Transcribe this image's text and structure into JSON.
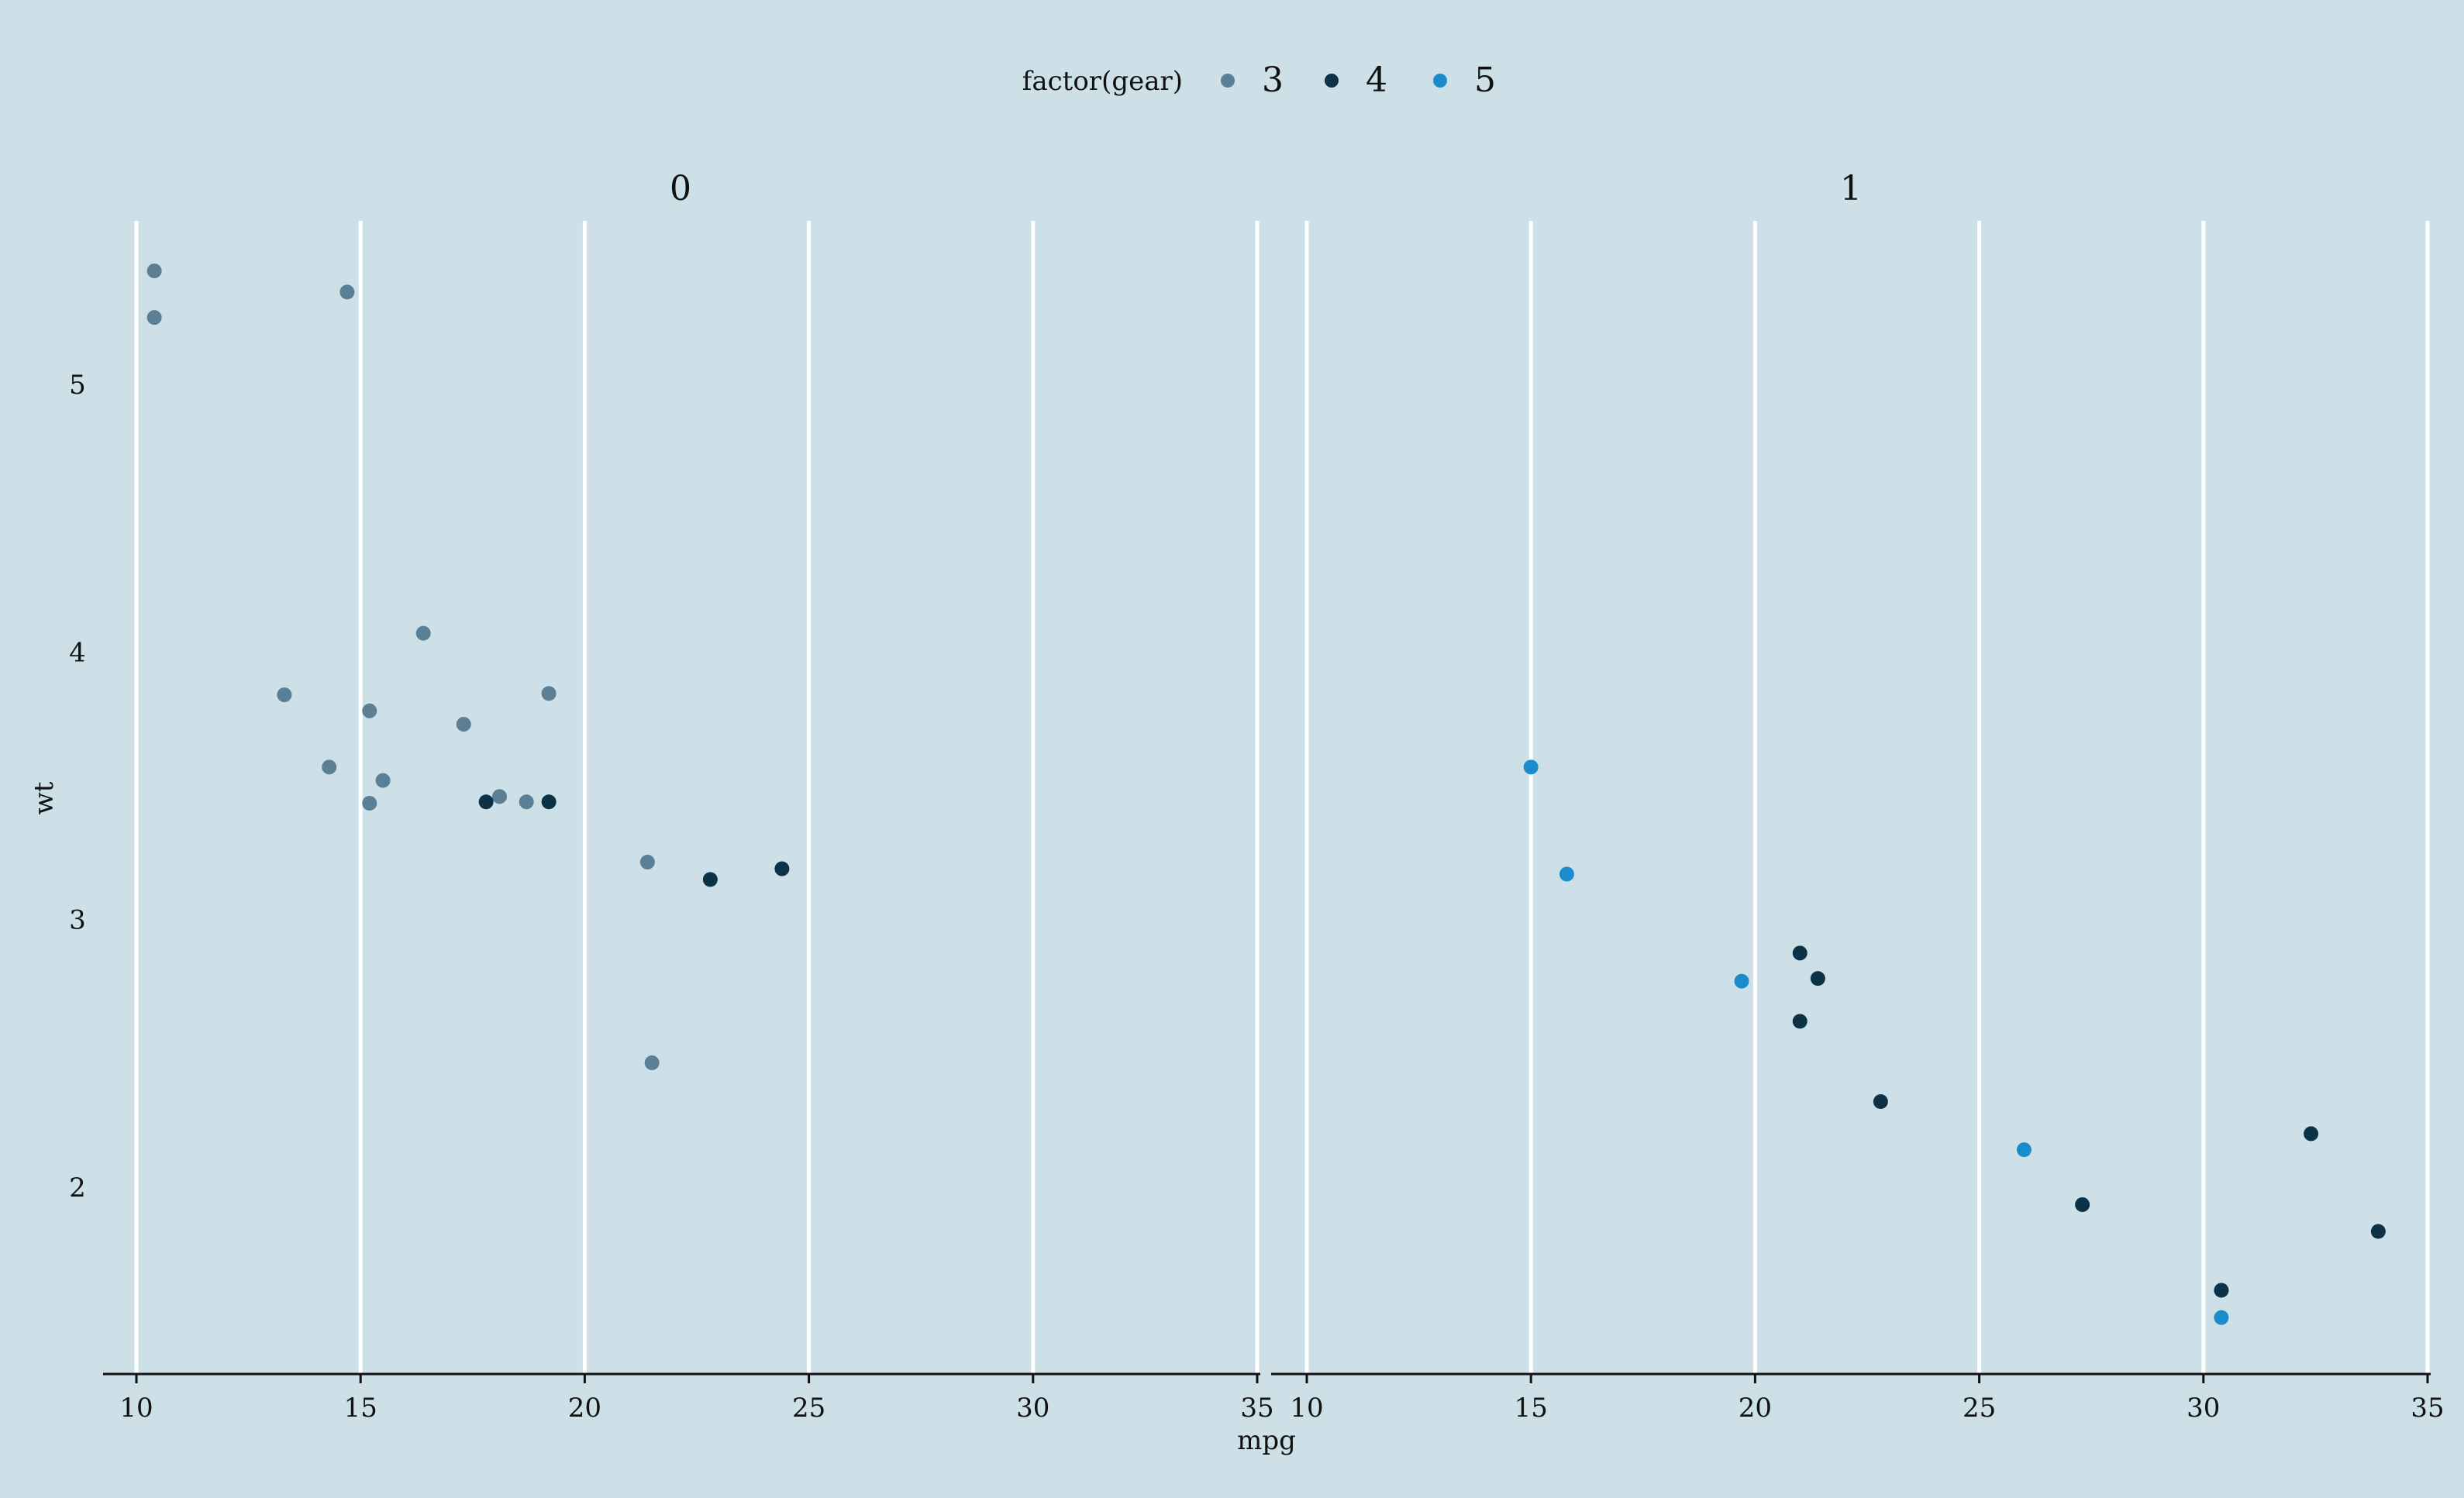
{
  "legend": {
    "title": "factor(gear)",
    "items": [
      {
        "label": "3",
        "color": "#5b7f95"
      },
      {
        "label": "4",
        "color": "#0b3246"
      },
      {
        "label": "5",
        "color": "#1a8ccc"
      }
    ]
  },
  "axes": {
    "xlabel": "mpg",
    "ylabel": "wt"
  },
  "chart_data": {
    "type": "scatter",
    "xlabel": "mpg",
    "ylabel": "wt",
    "xlim": [
      9.2,
      35.0
    ],
    "ylim": [
      1.38,
      5.55
    ],
    "x_ticks": [
      10,
      15,
      20,
      25,
      30,
      35
    ],
    "y_ticks": [
      2,
      3,
      4,
      5
    ],
    "legend_title": "factor(gear)",
    "legend_position": "top",
    "grid": "vertical major lines",
    "panels": [
      {
        "label": "0",
        "series": [
          {
            "name": "3",
            "color": "#5b7f95",
            "points": [
              [
                10.4,
                5.424
              ],
              [
                10.4,
                5.25
              ],
              [
                14.7,
                5.345
              ],
              [
                16.4,
                4.07
              ],
              [
                13.3,
                3.84
              ],
              [
                19.2,
                3.845
              ],
              [
                15.2,
                3.78
              ],
              [
                17.3,
                3.73
              ],
              [
                14.3,
                3.57
              ],
              [
                15.5,
                3.52
              ],
              [
                15.2,
                3.435
              ],
              [
                18.1,
                3.46
              ],
              [
                18.7,
                3.44
              ],
              [
                21.4,
                3.215
              ],
              [
                21.5,
                2.465
              ]
            ]
          },
          {
            "name": "4",
            "color": "#0b3246",
            "points": [
              [
                17.8,
                3.44
              ],
              [
                19.2,
                3.44
              ],
              [
                22.8,
                3.15
              ],
              [
                24.4,
                3.19
              ]
            ]
          }
        ]
      },
      {
        "label": "1",
        "series": [
          {
            "name": "4",
            "color": "#0b3246",
            "points": [
              [
                21.0,
                2.875
              ],
              [
                21.0,
                2.62
              ],
              [
                21.4,
                2.78
              ],
              [
                22.8,
                2.32
              ],
              [
                27.3,
                1.935
              ],
              [
                32.4,
                2.2
              ],
              [
                33.9,
                1.835
              ],
              [
                30.4,
                1.615
              ]
            ]
          },
          {
            "name": "5",
            "color": "#1a8ccc",
            "points": [
              [
                15.0,
                3.57
              ],
              [
                15.8,
                3.17
              ],
              [
                19.7,
                2.77
              ],
              [
                26.0,
                2.14
              ],
              [
                30.4,
                1.513
              ]
            ]
          }
        ]
      }
    ]
  }
}
